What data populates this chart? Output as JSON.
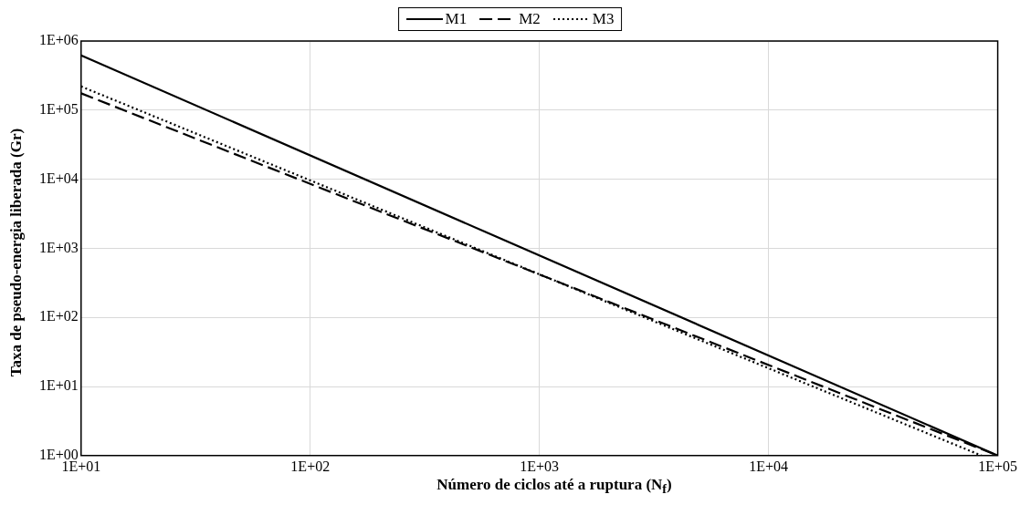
{
  "chart_data": {
    "type": "line",
    "xlabel": "Número de ciclos até a ruptura  (N$_{f}$)",
    "ylabel": "Taxa de pseudo-energia liberada  (Gr)",
    "x": [
      10,
      100000
    ],
    "series": [
      {
        "name": "M1",
        "color": "#000000",
        "line_style": "solid",
        "values": [
          620000,
          1
        ]
      },
      {
        "name": "M2",
        "color": "#000000",
        "line_style": "dashed",
        "values": [
          175000,
          1
        ]
      },
      {
        "name": "M3",
        "color": "#000000",
        "line_style": "dotted",
        "x": [
          10,
          85000
        ],
        "values": [
          220000,
          1
        ]
      }
    ],
    "log": "xy",
    "xlim": [
      10,
      100000
    ],
    "xticks": [
      {
        "value": 10,
        "label": "1E+01"
      },
      {
        "value": 100,
        "label": "1E+02"
      },
      {
        "value": 1000,
        "label": "1E+03"
      },
      {
        "value": 10000,
        "label": "1E+04"
      },
      {
        "value": 100000,
        "label": "1E+05"
      }
    ],
    "ylim": [
      1,
      1000000
    ],
    "yticks": [
      {
        "value": 1,
        "label": "1E+00"
      },
      {
        "value": 10,
        "label": "1E+01"
      },
      {
        "value": 100,
        "label": "1E+02"
      },
      {
        "value": 1000,
        "label": "1E+03"
      },
      {
        "value": 10000,
        "label": "1E+04"
      },
      {
        "value": 100000,
        "label": "1E+05"
      },
      {
        "value": 1000000,
        "label": "1E+06"
      }
    ],
    "grid": true,
    "legend": "top",
    "marker": "none"
  }
}
